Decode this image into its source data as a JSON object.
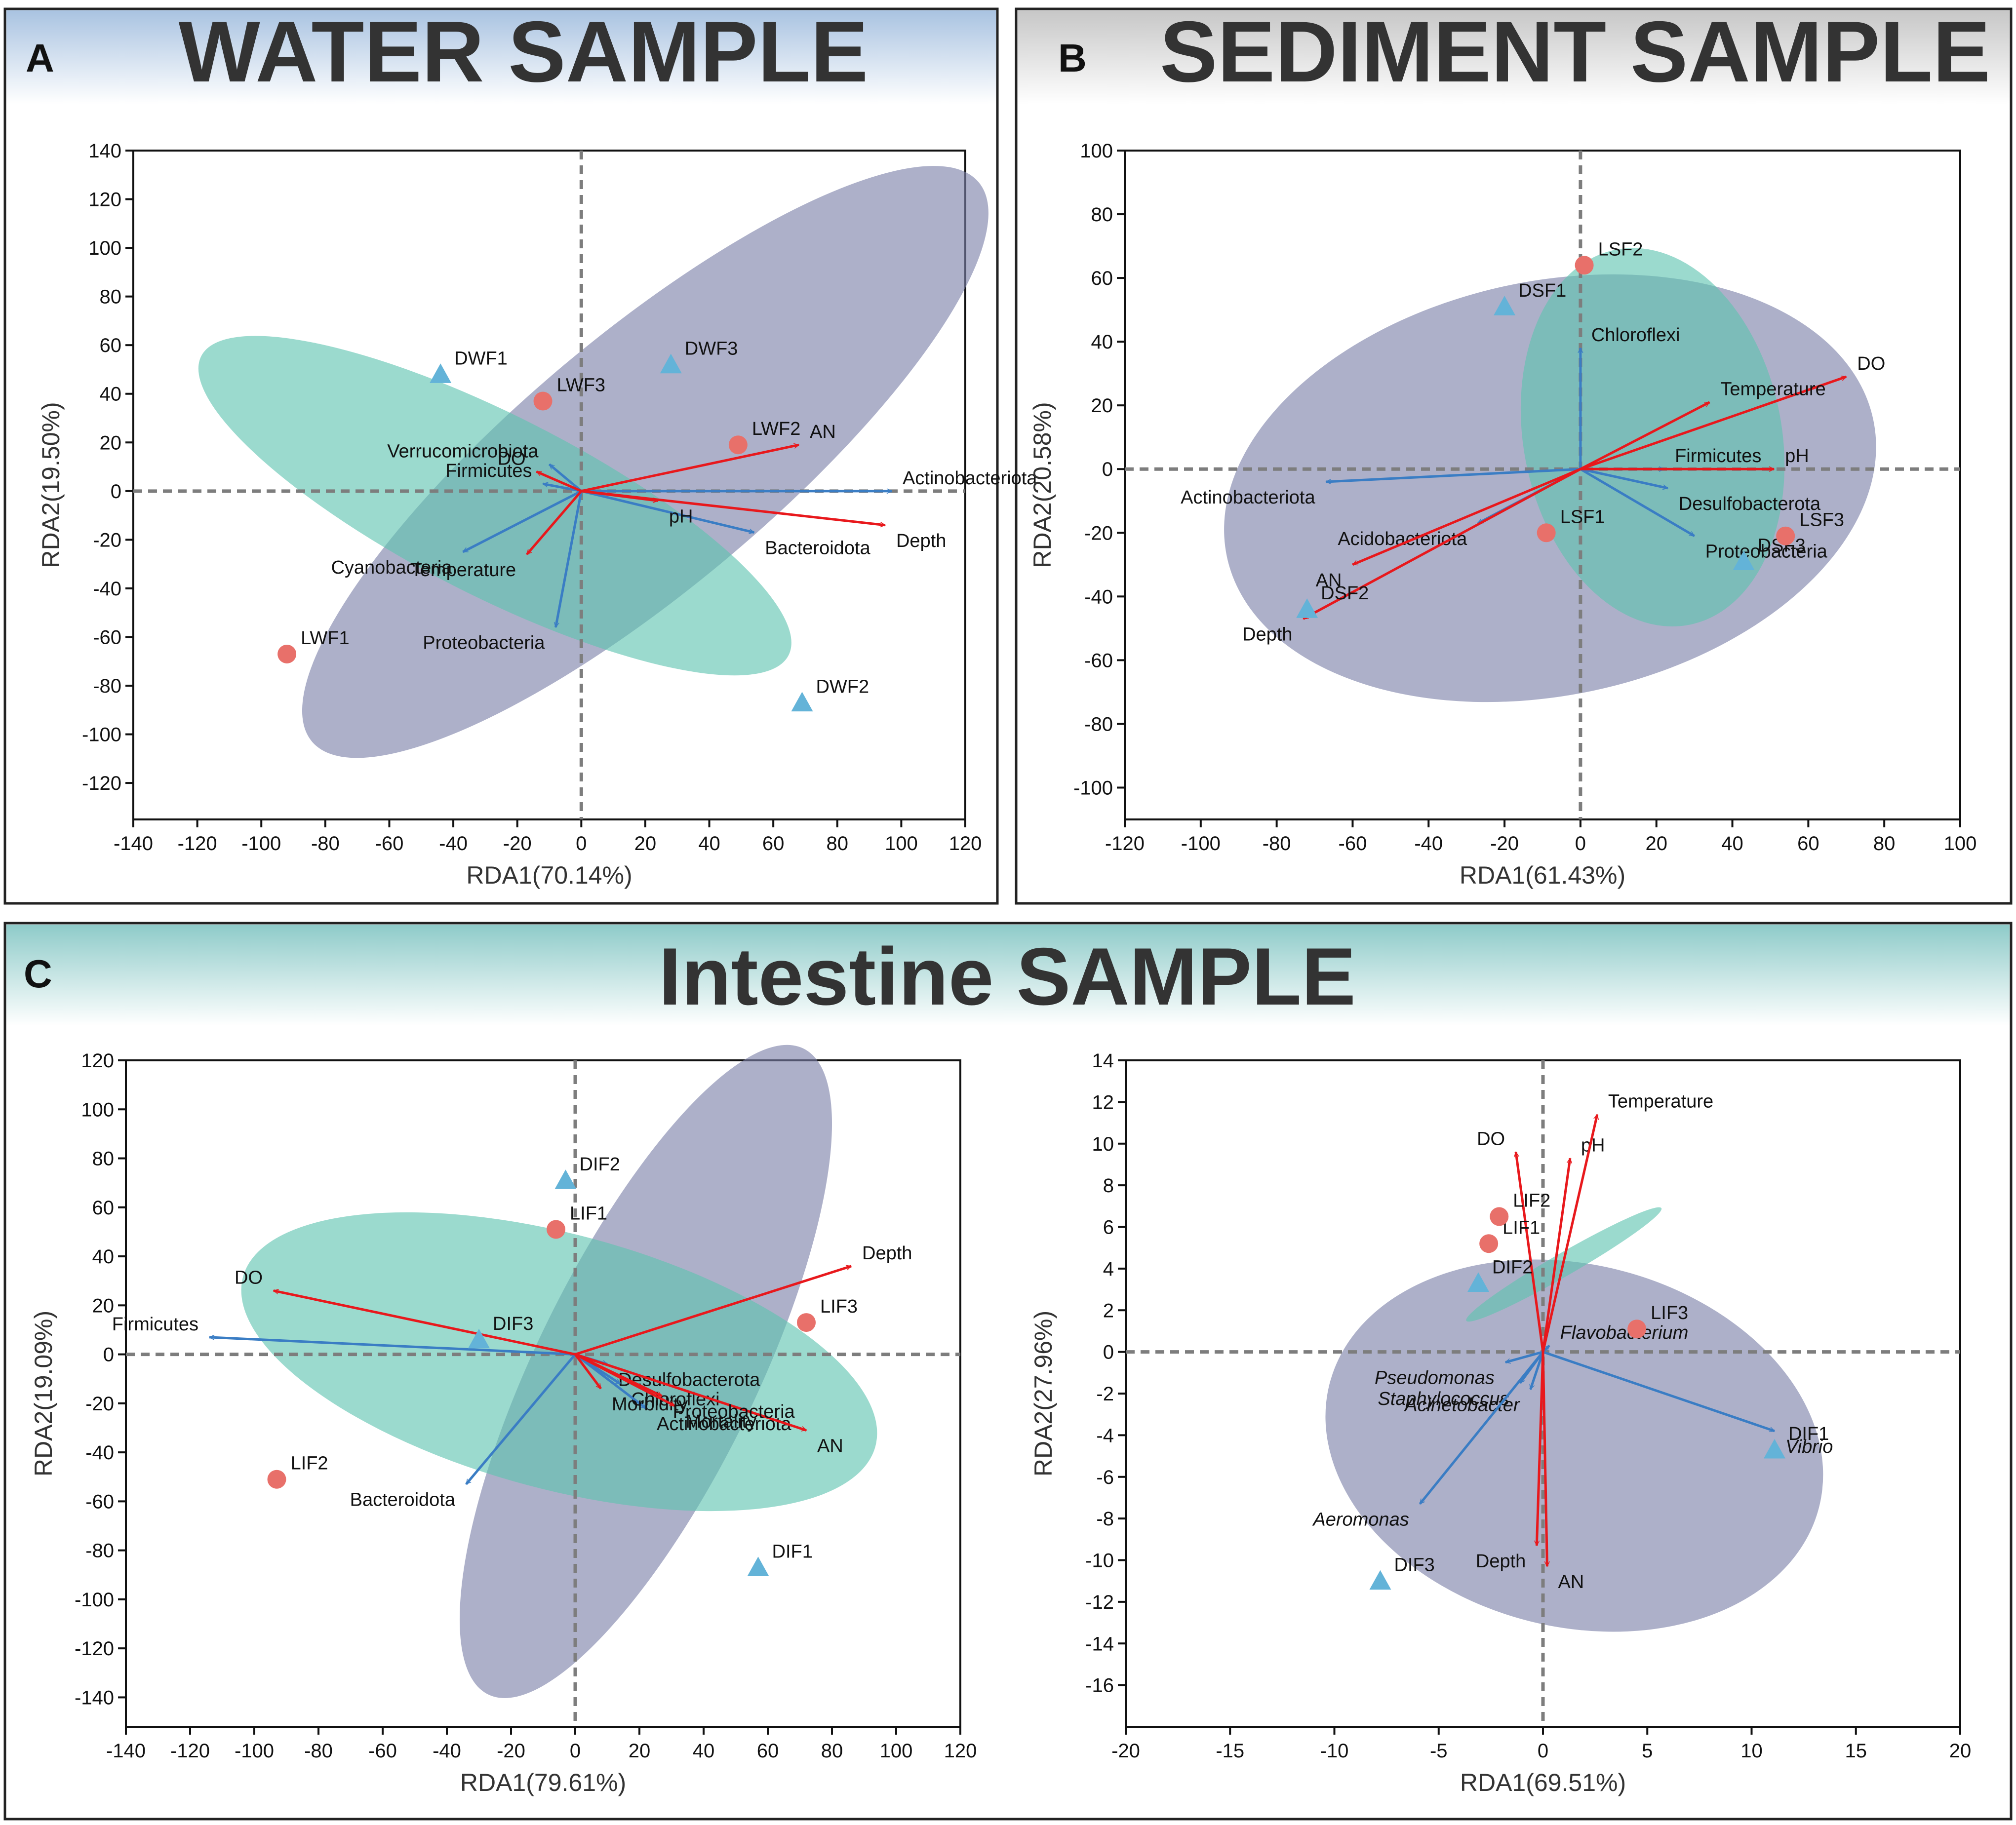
{
  "colors": {
    "group_green": "#5ec4b0",
    "group_purple": "#7b80a8",
    "env_arrow": "#e8181c",
    "taxa_arrow": "#3a7dc4",
    "point_l": "#e8706a",
    "point_d": "#63b3d8",
    "axis_dash": "#7d7d7d"
  },
  "sections": [
    {
      "letter": "A",
      "title": "WATER SAMPLE"
    },
    {
      "letter": "B",
      "title": "SEDIMENT SAMPLE"
    },
    {
      "letter": "C",
      "title": "Intestine SAMPLE"
    }
  ],
  "chart_data": [
    {
      "type": "scatter",
      "subtype": "rda-biplot",
      "panel": "A",
      "xlabel": "RDA1(70.14%)",
      "ylabel": "RDA2(19.50%)",
      "xlim": [
        -140,
        120
      ],
      "ylim": [
        -135,
        140
      ],
      "xticks": [
        -140,
        -120,
        -100,
        -80,
        -60,
        -40,
        -20,
        0,
        20,
        40,
        60,
        80,
        100,
        120
      ],
      "yticks": [
        -120,
        -100,
        -80,
        -60,
        -40,
        -20,
        0,
        20,
        40,
        60,
        80,
        100,
        120,
        140
      ],
      "ellipses": [
        {
          "group": "D",
          "cx": 20,
          "cy": 12,
          "rx": 136,
          "ry": 52,
          "angle": -40,
          "color": "group_purple"
        },
        {
          "group": "L",
          "cx": -27,
          "cy": -6,
          "rx": 103,
          "ry": 37,
          "angle": 27,
          "color": "group_green"
        }
      ],
      "points": [
        {
          "label": "DWF1",
          "x": -44,
          "y": 48,
          "group": "D"
        },
        {
          "label": "DWF2",
          "x": 69,
          "y": -87,
          "group": "D"
        },
        {
          "label": "DWF3",
          "x": 28,
          "y": 52,
          "group": "D"
        },
        {
          "label": "LWF1",
          "x": -92,
          "y": -67,
          "group": "L"
        },
        {
          "label": "LWF2",
          "x": 49,
          "y": 19,
          "group": "L"
        },
        {
          "label": "LWF3",
          "x": -12,
          "y": 37,
          "group": "L"
        }
      ],
      "env_arrows": [
        {
          "label": "AN",
          "x": 68,
          "y": 19
        },
        {
          "label": "Depth",
          "x": 95,
          "y": -14
        },
        {
          "label": "pH",
          "x": 24,
          "y": -4
        },
        {
          "label": "DO",
          "x": -14,
          "y": 8
        },
        {
          "label": "Temperature",
          "x": -17,
          "y": -26
        }
      ],
      "taxa_arrows": [
        {
          "label": "Actinobacteriota",
          "x": 97,
          "y": 0
        },
        {
          "label": "Bacteroidota",
          "x": 54,
          "y": -17
        },
        {
          "label": "Proteobacteria",
          "x": -8,
          "y": -56
        },
        {
          "label": "Cyanobacteria",
          "x": -37,
          "y": -25
        },
        {
          "label": "Verrucomicrobiota",
          "x": -10,
          "y": 11
        },
        {
          "label": "Firmicutes",
          "x": -12,
          "y": 3
        }
      ]
    },
    {
      "type": "scatter",
      "subtype": "rda-biplot",
      "panel": "B",
      "xlabel": "RDA1(61.43%)",
      "ylabel": "RDA2(20.58%)",
      "xlim": [
        -120,
        100
      ],
      "ylim": [
        -110,
        100
      ],
      "xticks": [
        -120,
        -100,
        -80,
        -60,
        -40,
        -20,
        0,
        20,
        40,
        60,
        80,
        100
      ],
      "yticks": [
        -100,
        -80,
        -60,
        -40,
        -20,
        0,
        20,
        40,
        60,
        80,
        100
      ],
      "ellipses": [
        {
          "group": "D",
          "cx": -8,
          "cy": -6,
          "rx": 87,
          "ry": 65,
          "angle": -12,
          "color": "group_purple"
        },
        {
          "group": "L",
          "cx": 19,
          "cy": 10,
          "rx": 34,
          "ry": 60,
          "angle": -11,
          "color": "group_green"
        }
      ],
      "points": [
        {
          "label": "DSF1",
          "x": -20,
          "y": 51,
          "group": "D"
        },
        {
          "label": "DSF2",
          "x": -72,
          "y": -44,
          "group": "D"
        },
        {
          "label": "DSF3",
          "x": 43,
          "y": -29,
          "group": "D"
        },
        {
          "label": "LSF1",
          "x": -9,
          "y": -20,
          "group": "L"
        },
        {
          "label": "LSF2",
          "x": 1,
          "y": 64,
          "group": "L"
        },
        {
          "label": "LSF3",
          "x": 54,
          "y": -21,
          "group": "L"
        }
      ],
      "env_arrows": [
        {
          "label": "DO",
          "x": 70,
          "y": 29
        },
        {
          "label": "Temperature",
          "x": 34,
          "y": 21
        },
        {
          "label": "pH",
          "x": 51,
          "y": 0
        },
        {
          "label": "AN",
          "x": -60,
          "y": -30
        },
        {
          "label": "Depth",
          "x": -73,
          "y": -47
        }
      ],
      "taxa_arrows": [
        {
          "label": "Chloroflexi",
          "x": 0,
          "y": 38
        },
        {
          "label": "Actinobacteriota",
          "x": -67,
          "y": -4
        },
        {
          "label": "Firmicutes",
          "x": 22,
          "y": 0
        },
        {
          "label": "Desulfobacterota",
          "x": 23,
          "y": -6
        },
        {
          "label": "Acidobacteriota",
          "x": -27,
          "y": -17
        },
        {
          "label": "Proteobacteria",
          "x": 30,
          "y": -21
        }
      ]
    },
    {
      "type": "scatter",
      "subtype": "rda-biplot",
      "panel": "C-left",
      "xlabel": "RDA1(79.61%)",
      "ylabel": "RDA2(19.09%)",
      "xlim": [
        -140,
        120
      ],
      "ylim": [
        -152,
        120
      ],
      "xticks": [
        -140,
        -120,
        -100,
        -80,
        -60,
        -40,
        -20,
        0,
        20,
        40,
        60,
        80,
        100,
        120
      ],
      "yticks": [
        -140,
        -120,
        -100,
        -80,
        -60,
        -40,
        -20,
        0,
        20,
        40,
        60,
        80,
        100,
        120
      ],
      "ellipses": [
        {
          "group": "D",
          "cx": 22,
          "cy": -7,
          "rx": 112,
          "ry": 45,
          "angle": -64,
          "color": "group_purple"
        },
        {
          "group": "L",
          "cx": -5,
          "cy": -3,
          "rx": 102,
          "ry": 52,
          "angle": 15,
          "color": "group_green"
        }
      ],
      "points": [
        {
          "label": "DIF1",
          "x": 57,
          "y": -87,
          "group": "D"
        },
        {
          "label": "DIF2",
          "x": -3,
          "y": 71,
          "group": "D"
        },
        {
          "label": "DIF3",
          "x": -30,
          "y": 6,
          "group": "D"
        },
        {
          "label": "LIF1",
          "x": -6,
          "y": 51,
          "group": "L"
        },
        {
          "label": "LIF2",
          "x": -93,
          "y": -51,
          "group": "L"
        },
        {
          "label": "LIF3",
          "x": 72,
          "y": 13,
          "group": "L"
        }
      ],
      "env_arrows": [
        {
          "label": "Depth",
          "x": 86,
          "y": 36
        },
        {
          "label": "DO",
          "x": -94,
          "y": 26
        },
        {
          "label": "AN",
          "x": 72,
          "y": -31
        },
        {
          "label": "Morbidity",
          "x": 8,
          "y": -14
        },
        {
          "label": "Mortality",
          "x": 31,
          "y": -21
        },
        {
          "label": "Proteobacteria",
          "x": 27,
          "y": -17
        }
      ],
      "taxa_arrows": [
        {
          "label": "Firmicutes",
          "x": -114,
          "y": 7
        },
        {
          "label": "Bacteroidota",
          "x": -34,
          "y": -53
        },
        {
          "label": "Desulfobacterota",
          "x": 10,
          "y": -4
        },
        {
          "label": "Chloroflexi",
          "x": 14,
          "y": -12
        },
        {
          "label": "Actinobacteriota",
          "x": 22,
          "y": -22
        }
      ]
    },
    {
      "type": "scatter",
      "subtype": "rda-biplot",
      "panel": "C-right",
      "xlabel": "RDA1(69.51%)",
      "ylabel": "RDA2(27.96%)",
      "xlim": [
        -20,
        20
      ],
      "ylim": [
        -18,
        14
      ],
      "xticks": [
        -20,
        -15,
        -10,
        -5,
        0,
        5,
        10,
        15,
        20
      ],
      "yticks": [
        -16,
        -14,
        -12,
        -10,
        -8,
        -6,
        -4,
        -2,
        0,
        2,
        4,
        6,
        8,
        10,
        12,
        14
      ],
      "ellipses": [
        {
          "group": "D",
          "cx": 1.5,
          "cy": -4.5,
          "rx": 12.1,
          "ry": 8.7,
          "angle": 14,
          "color": "group_purple"
        },
        {
          "group": "L",
          "cx": 1,
          "cy": 4.2,
          "rx": 5.4,
          "ry": 0.55,
          "angle": -30,
          "color": "group_green"
        }
      ],
      "points": [
        {
          "label": "DIF1",
          "x": 11.1,
          "y": -4.7,
          "group": "D"
        },
        {
          "label": "DIF2",
          "x": -3.1,
          "y": 3.3,
          "group": "D"
        },
        {
          "label": "DIF3",
          "x": -7.8,
          "y": -11.0,
          "group": "D"
        },
        {
          "label": "LIF1",
          "x": -2.6,
          "y": 5.2,
          "group": "L"
        },
        {
          "label": "LIF2",
          "x": -2.1,
          "y": 6.5,
          "group": "L"
        },
        {
          "label": "LIF3",
          "x": 4.5,
          "y": 1.1,
          "group": "L"
        }
      ],
      "env_arrows": [
        {
          "label": "DO",
          "x": -1.3,
          "y": 9.6
        },
        {
          "label": "pH",
          "x": 1.3,
          "y": 9.3
        },
        {
          "label": "Temperature",
          "x": 2.6,
          "y": 11.4
        },
        {
          "label": "Depth",
          "x": -0.3,
          "y": -9.3
        },
        {
          "label": "AN",
          "x": 0.2,
          "y": -10.3
        }
      ],
      "taxa_arrows": [
        {
          "label": "Pseudomonas",
          "x": -1.8,
          "y": -0.5
        },
        {
          "label": "Flavobacterium",
          "x": 0.3,
          "y": 0.3
        },
        {
          "label": "Staphylococcus",
          "x": -1.1,
          "y": -1.5
        },
        {
          "label": "Acinetobacter",
          "x": -0.6,
          "y": -1.8
        },
        {
          "label": "Vibrio",
          "x": 11.1,
          "y": -3.8
        },
        {
          "label": "Aeromonas",
          "x": -5.9,
          "y": -7.3
        }
      ]
    }
  ]
}
